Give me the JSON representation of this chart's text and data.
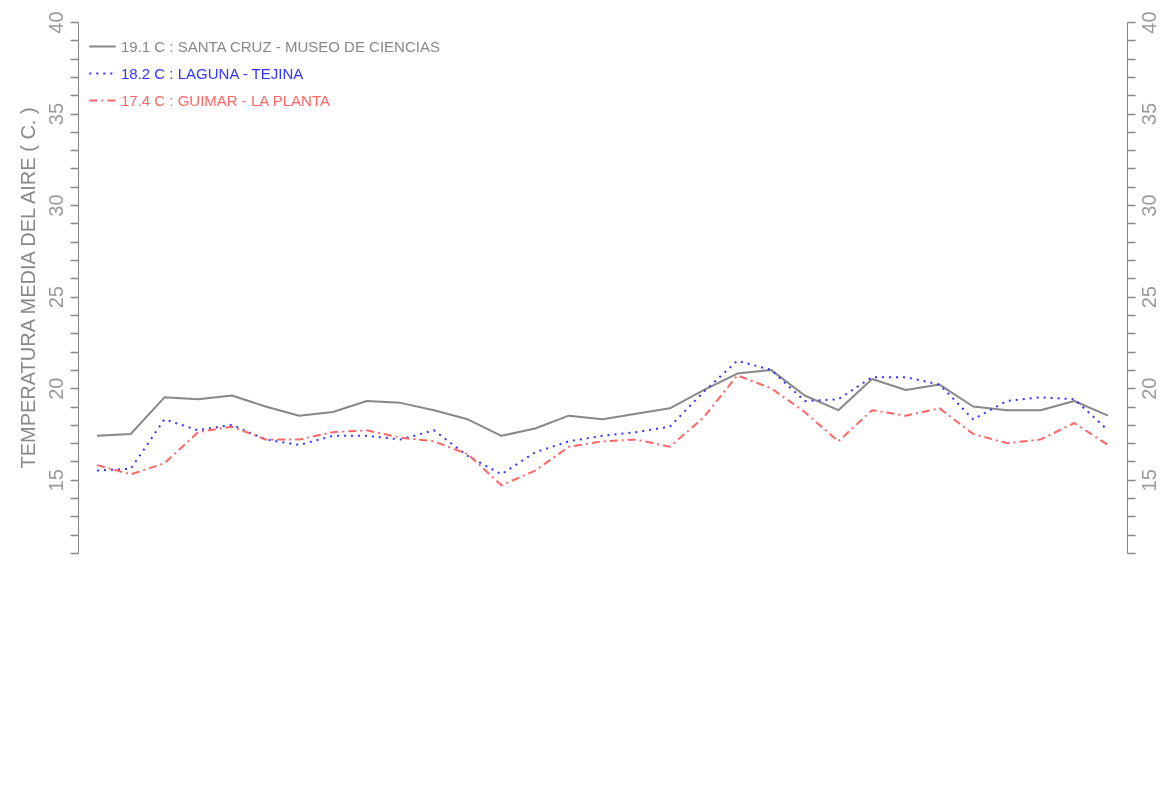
{
  "chart_data": {
    "type": "line",
    "ylabel": "TEMPERATURA MEDIA DEL AIRE ( C. )",
    "categories": [
      null,
      null,
      null,
      null,
      null,
      null,
      null,
      null,
      null,
      null,
      null,
      null,
      null,
      null,
      null,
      null,
      null,
      null,
      null,
      null,
      null,
      null,
      null,
      null,
      null,
      null,
      null,
      null,
      null,
      null,
      null
    ],
    "series": [
      {
        "name": "19.1  C : SANTA CRUZ - MUSEO DE CIENCIAS",
        "color": "#888888",
        "line_style": "solid",
        "values": [
          17.4,
          17.5,
          19.5,
          19.4,
          19.6,
          19.0,
          18.5,
          18.7,
          19.3,
          19.2,
          18.8,
          18.3,
          17.4,
          17.8,
          18.5,
          18.3,
          18.6,
          18.9,
          19.9,
          20.8,
          21.0,
          19.6,
          18.8,
          20.5,
          19.9,
          20.2,
          19.0,
          18.8,
          18.8,
          19.3,
          18.5
        ]
      },
      {
        "name": "18.2  C : LAGUNA - TEJINA",
        "color": "#3333ff",
        "line_style": "dotted",
        "values": [
          15.5,
          15.6,
          18.3,
          17.7,
          18.0,
          17.2,
          16.9,
          17.4,
          17.4,
          17.2,
          17.7,
          16.3,
          15.3,
          16.5,
          17.1,
          17.4,
          17.6,
          17.9,
          19.8,
          21.5,
          21.0,
          19.3,
          19.4,
          20.6,
          20.6,
          20.2,
          18.3,
          19.3,
          19.5,
          19.4,
          17.7
        ]
      },
      {
        "name": "17.4  C : GUIMAR - LA PLANTA",
        "color": "#ff6666",
        "line_style": "dashed",
        "values": [
          15.8,
          15.3,
          15.9,
          17.6,
          17.9,
          17.2,
          17.2,
          17.6,
          17.7,
          17.3,
          17.1,
          16.4,
          14.7,
          15.5,
          16.8,
          17.1,
          17.2,
          16.8,
          18.4,
          20.7,
          20.0,
          18.7,
          17.1,
          18.8,
          18.5,
          18.9,
          17.5,
          17.0,
          17.2,
          18.1,
          16.9
        ]
      }
    ],
    "ylim": [
      11,
      40
    ],
    "yticks": [
      {
        "value": 11,
        "label": null
      },
      {
        "value": 12,
        "label": null
      },
      {
        "value": 13,
        "label": null
      },
      {
        "value": 14,
        "label": null
      },
      15,
      {
        "value": 16,
        "label": null
      },
      {
        "value": 17,
        "label": null
      },
      {
        "value": 18,
        "label": null
      },
      {
        "value": 19,
        "label": null
      },
      20,
      {
        "value": 21,
        "label": null
      },
      {
        "value": 22,
        "label": null
      },
      {
        "value": 23,
        "label": null
      },
      {
        "value": 24,
        "label": null
      },
      25,
      {
        "value": 26,
        "label": null
      },
      {
        "value": 27,
        "label": null
      },
      {
        "value": 28,
        "label": null
      },
      {
        "value": 29,
        "label": null
      },
      30,
      {
        "value": 31,
        "label": null
      },
      {
        "value": 32,
        "label": null
      },
      {
        "value": 33,
        "label": null
      },
      {
        "value": 34,
        "label": null
      },
      35,
      {
        "value": 36,
        "label": null
      },
      {
        "value": 37,
        "label": null
      },
      {
        "value": 38,
        "label": null
      },
      {
        "value": 39,
        "label": null
      },
      40
    ],
    "y2lim": [
      11,
      40
    ],
    "y2ticks": [
      {
        "value": 11,
        "label": null
      },
      {
        "value": 12,
        "label": null
      },
      {
        "value": 13,
        "label": null
      },
      {
        "value": 14,
        "label": null
      },
      15,
      {
        "value": 16,
        "label": null
      },
      {
        "value": 17,
        "label": null
      },
      {
        "value": 18,
        "label": null
      },
      {
        "value": 19,
        "label": null
      },
      20,
      {
        "value": 21,
        "label": null
      },
      {
        "value": 22,
        "label": null
      },
      {
        "value": 23,
        "label": null
      },
      {
        "value": 24,
        "label": null
      },
      25,
      {
        "value": 26,
        "label": null
      },
      {
        "value": 27,
        "label": null
      },
      {
        "value": 28,
        "label": null
      },
      {
        "value": 29,
        "label": null
      },
      30,
      {
        "value": 31,
        "label": null
      },
      {
        "value": 32,
        "label": null
      },
      {
        "value": 33,
        "label": null
      },
      {
        "value": 34,
        "label": null
      },
      35,
      {
        "value": 36,
        "label": null
      },
      {
        "value": 37,
        "label": null
      },
      {
        "value": 38,
        "label": null
      },
      {
        "value": 39,
        "label": null
      },
      40
    ],
    "grid": false,
    "legend": "top left",
    "tick_labels": "y",
    "marker": "none"
  }
}
